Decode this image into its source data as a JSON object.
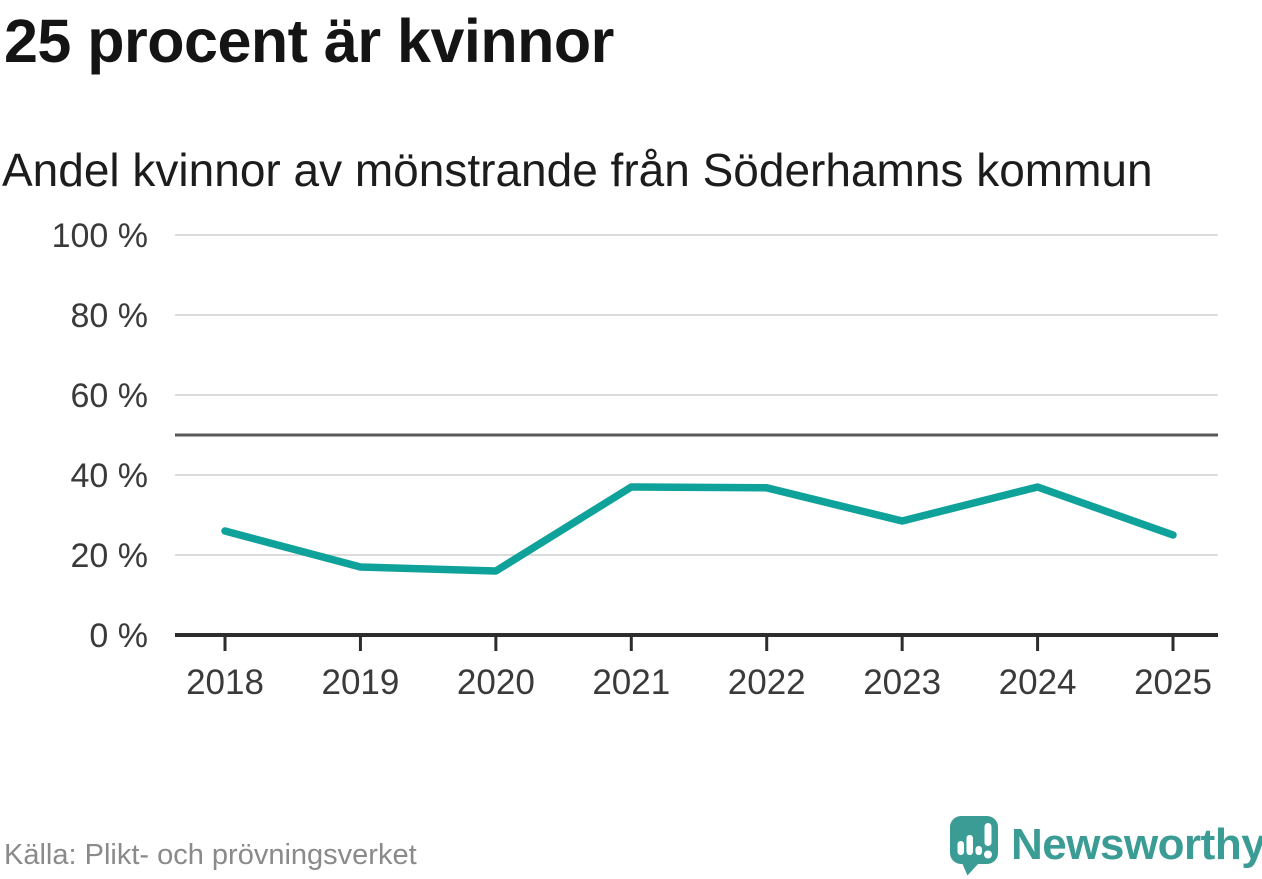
{
  "header": {
    "title": "25 procent är kvinnor",
    "subtitle": "Andel kvinnor av mönstrande från Söderhamns kommun"
  },
  "chart_data": {
    "type": "line",
    "title": "25 procent är kvinnor",
    "subtitle": "Andel kvinnor av mönstrande från Söderhamns kommun",
    "x": [
      2018,
      2019,
      2020,
      2021,
      2022,
      2023,
      2024,
      2025
    ],
    "series": [
      {
        "name": "Andel kvinnor av mönstrande",
        "values": [
          26,
          17,
          16,
          37,
          36.8,
          28.5,
          37,
          25
        ]
      }
    ],
    "unit": "%",
    "ylim": [
      0,
      100
    ],
    "yticks": [
      0,
      20,
      40,
      60,
      80,
      100
    ],
    "ytick_suffix": " %",
    "reference_line": 50,
    "grid": true,
    "legend": "none",
    "colors": {
      "line": "#0EA29A",
      "reference_line": "#58585A",
      "axis": "#2D2D2D",
      "gridline": "#DCDCDC",
      "tick_label": "#3A3A3A"
    }
  },
  "footer": {
    "source": "Källa: Plikt- och prövningsverket"
  },
  "logo": {
    "text": "Newsworthy",
    "color": "#3A9C94",
    "icon": "newsworthy-speech-bubble-chart-icon"
  }
}
